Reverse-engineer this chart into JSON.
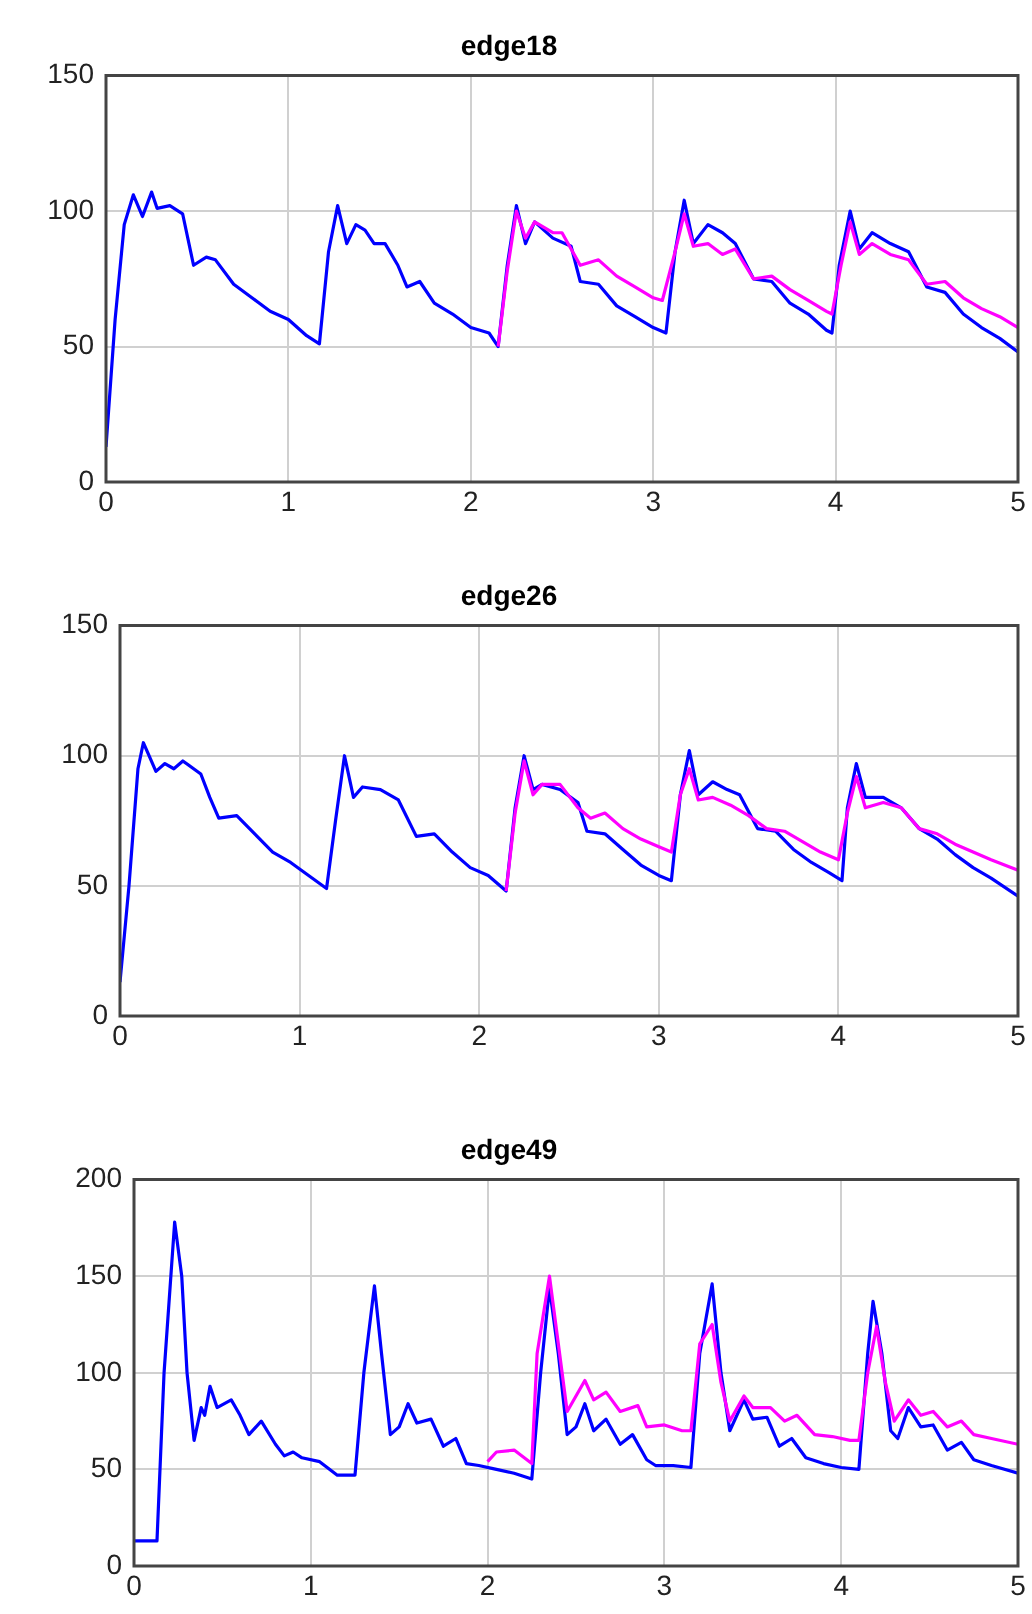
{
  "chart_data": [
    {
      "type": "line",
      "title": "edge18",
      "xlim": [
        0,
        5
      ],
      "xticks": [
        0,
        1,
        2,
        3,
        4,
        5
      ],
      "ylim": [
        0,
        150
      ],
      "yticks": [
        0,
        50,
        100,
        150
      ],
      "grid": true,
      "legend": false,
      "marker": "none",
      "line_style": "solid",
      "series": [
        {
          "color": "#ff00ff",
          "x": [
            2.15,
            2.2,
            2.25,
            2.3,
            2.35,
            2.45,
            2.5,
            2.6,
            2.7,
            2.8,
            2.9,
            3.0,
            3.05,
            3.12,
            3.17,
            3.22,
            3.3,
            3.38,
            3.45,
            3.55,
            3.65,
            3.75,
            3.85,
            3.95,
            3.98,
            4.03,
            4.08,
            4.13,
            4.2,
            4.3,
            4.4,
            4.5,
            4.6,
            4.7,
            4.8,
            4.9,
            5.0
          ],
          "values": [
            50,
            78,
            100,
            90,
            96,
            92,
            92,
            80,
            82,
            76,
            72,
            68,
            67,
            85,
            99,
            87,
            88,
            84,
            86,
            75,
            76,
            71,
            67,
            63,
            62,
            80,
            96,
            84,
            88,
            84,
            82,
            73,
            74,
            68,
            64,
            61,
            57
          ]
        },
        {
          "color": "#0000ff",
          "x": [
            0,
            0.05,
            0.1,
            0.15,
            0.2,
            0.25,
            0.28,
            0.35,
            0.42,
            0.48,
            0.55,
            0.6,
            0.7,
            0.8,
            0.9,
            1.0,
            1.1,
            1.17,
            1.22,
            1.27,
            1.32,
            1.37,
            1.42,
            1.47,
            1.53,
            1.6,
            1.65,
            1.72,
            1.8,
            1.9,
            2.0,
            2.1,
            2.15,
            2.2,
            2.25,
            2.3,
            2.35,
            2.45,
            2.55,
            2.6,
            2.7,
            2.8,
            2.9,
            3.0,
            3.07,
            3.12,
            3.17,
            3.22,
            3.3,
            3.38,
            3.45,
            3.55,
            3.65,
            3.75,
            3.85,
            3.95,
            3.98,
            4.02,
            4.08,
            4.13,
            4.2,
            4.3,
            4.4,
            4.5,
            4.6,
            4.7,
            4.8,
            4.9,
            5.0
          ],
          "values": [
            13,
            60,
            95,
            106,
            98,
            107,
            101,
            102,
            99,
            80,
            83,
            82,
            73,
            68,
            63,
            60,
            54,
            51,
            85,
            102,
            88,
            95,
            93,
            88,
            88,
            80,
            72,
            74,
            66,
            62,
            57,
            55,
            50,
            80,
            102,
            88,
            96,
            90,
            87,
            74,
            73,
            65,
            61,
            57,
            55,
            85,
            104,
            88,
            95,
            92,
            88,
            75,
            74,
            66,
            62,
            56,
            55,
            80,
            100,
            86,
            92,
            88,
            85,
            72,
            70,
            62,
            57,
            53,
            48
          ]
        }
      ]
    },
    {
      "type": "line",
      "title": "edge26",
      "xlim": [
        0,
        5
      ],
      "xticks": [
        0,
        1,
        2,
        3,
        4,
        5
      ],
      "ylim": [
        0,
        150
      ],
      "yticks": [
        0,
        50,
        100,
        150
      ],
      "grid": true,
      "legend": false,
      "marker": "none",
      "line_style": "solid",
      "series": [
        {
          "color": "#ff00ff",
          "x": [
            2.15,
            2.2,
            2.25,
            2.3,
            2.35,
            2.45,
            2.55,
            2.62,
            2.7,
            2.8,
            2.9,
            3.0,
            3.07,
            3.12,
            3.17,
            3.22,
            3.3,
            3.4,
            3.5,
            3.6,
            3.7,
            3.8,
            3.9,
            4.0,
            4.05,
            4.1,
            4.15,
            4.25,
            4.35,
            4.45,
            4.55,
            4.65,
            4.75,
            4.85,
            5.0
          ],
          "values": [
            48,
            78,
            98,
            85,
            89,
            89,
            80,
            76,
            78,
            72,
            68,
            65,
            63,
            85,
            95,
            83,
            84,
            81,
            77,
            72,
            71,
            67,
            63,
            60,
            78,
            92,
            80,
            82,
            80,
            72,
            70,
            66,
            63,
            60,
            56
          ]
        },
        {
          "color": "#0000ff",
          "x": [
            0,
            0.05,
            0.1,
            0.13,
            0.2,
            0.25,
            0.3,
            0.35,
            0.45,
            0.5,
            0.55,
            0.65,
            0.75,
            0.85,
            0.95,
            1.05,
            1.15,
            1.2,
            1.25,
            1.3,
            1.35,
            1.45,
            1.55,
            1.65,
            1.75,
            1.85,
            1.95,
            2.05,
            2.15,
            2.2,
            2.25,
            2.3,
            2.35,
            2.45,
            2.55,
            2.6,
            2.7,
            2.8,
            2.9,
            3.0,
            3.07,
            3.12,
            3.17,
            3.22,
            3.3,
            3.38,
            3.45,
            3.55,
            3.65,
            3.75,
            3.85,
            3.95,
            4.02,
            4.05,
            4.1,
            4.15,
            4.25,
            4.35,
            4.45,
            4.55,
            4.65,
            4.75,
            4.85,
            5.0
          ],
          "values": [
            13,
            50,
            95,
            105,
            94,
            97,
            95,
            98,
            93,
            84,
            76,
            77,
            70,
            63,
            59,
            54,
            49,
            75,
            100,
            84,
            88,
            87,
            83,
            69,
            70,
            63,
            57,
            54,
            48,
            80,
            100,
            87,
            89,
            87,
            82,
            71,
            70,
            64,
            58,
            54,
            52,
            85,
            102,
            85,
            90,
            87,
            85,
            72,
            71,
            64,
            59,
            55,
            52,
            80,
            97,
            84,
            84,
            80,
            72,
            68,
            62,
            57,
            53,
            46
          ]
        }
      ]
    },
    {
      "type": "line",
      "title": "edge49",
      "xlim": [
        0,
        5
      ],
      "xticks": [
        0,
        1,
        2,
        3,
        4,
        5
      ],
      "ylim": [
        0,
        200
      ],
      "yticks": [
        0,
        50,
        100,
        150,
        200
      ],
      "grid": true,
      "legend": false,
      "marker": "none",
      "line_style": "solid",
      "series": [
        {
          "color": "#ff00ff",
          "x": [
            2.0,
            2.05,
            2.15,
            2.25,
            2.28,
            2.35,
            2.4,
            2.45,
            2.5,
            2.55,
            2.6,
            2.67,
            2.75,
            2.85,
            2.9,
            3.0,
            3.1,
            3.15,
            3.2,
            3.27,
            3.32,
            3.37,
            3.45,
            3.5,
            3.6,
            3.68,
            3.75,
            3.85,
            3.95,
            4.05,
            4.1,
            4.15,
            4.2,
            4.25,
            4.3,
            4.38,
            4.45,
            4.52,
            4.6,
            4.68,
            4.75,
            4.85,
            5.0
          ],
          "values": [
            54,
            59,
            60,
            53,
            110,
            150,
            115,
            80,
            88,
            96,
            86,
            90,
            80,
            83,
            72,
            73,
            70,
            70,
            115,
            125,
            95,
            75,
            88,
            82,
            82,
            75,
            78,
            68,
            67,
            65,
            65,
            100,
            124,
            95,
            75,
            86,
            78,
            80,
            72,
            75,
            68,
            66,
            63
          ]
        },
        {
          "color": "#0000ff",
          "x": [
            0,
            0.13,
            0.17,
            0.23,
            0.27,
            0.3,
            0.34,
            0.38,
            0.4,
            0.43,
            0.47,
            0.55,
            0.6,
            0.65,
            0.72,
            0.8,
            0.85,
            0.9,
            0.95,
            1.05,
            1.15,
            1.25,
            1.3,
            1.36,
            1.4,
            1.45,
            1.5,
            1.55,
            1.6,
            1.68,
            1.75,
            1.82,
            1.88,
            1.95,
            2.05,
            2.15,
            2.25,
            2.3,
            2.35,
            2.4,
            2.45,
            2.5,
            2.55,
            2.6,
            2.67,
            2.75,
            2.82,
            2.9,
            2.95,
            3.05,
            3.15,
            3.2,
            3.27,
            3.32,
            3.37,
            3.45,
            3.5,
            3.58,
            3.65,
            3.72,
            3.8,
            3.9,
            4.0,
            4.1,
            4.15,
            4.18,
            4.23,
            4.28,
            4.32,
            4.38,
            4.45,
            4.52,
            4.6,
            4.68,
            4.75,
            4.85,
            5.0
          ],
          "values": [
            13,
            13,
            100,
            178,
            150,
            100,
            65,
            82,
            78,
            93,
            82,
            86,
            78,
            68,
            75,
            63,
            57,
            59,
            56,
            54,
            47,
            47,
            100,
            145,
            110,
            68,
            72,
            84,
            74,
            76,
            62,
            66,
            53,
            52,
            50,
            48,
            45,
            100,
            144,
            110,
            68,
            72,
            84,
            70,
            76,
            63,
            68,
            55,
            52,
            52,
            51,
            110,
            146,
            100,
            70,
            86,
            76,
            77,
            62,
            66,
            56,
            53,
            51,
            50,
            110,
            137,
            110,
            70,
            66,
            82,
            72,
            73,
            60,
            64,
            55,
            52,
            48
          ]
        }
      ]
    }
  ]
}
